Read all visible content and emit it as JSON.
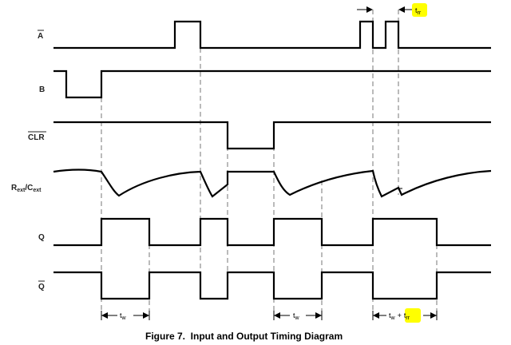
{
  "signals": {
    "a_bar": "A",
    "b": "B",
    "clr_bar": "CLR",
    "rext": {
      "main": "R",
      "sub1": "ext",
      "sep": "/C",
      "sub2": "ext"
    },
    "q": "Q",
    "q_bar": "Q"
  },
  "measures": {
    "tw1": {
      "t": "t",
      "sub": "w"
    },
    "tw2": {
      "t": "t",
      "sub": "w"
    },
    "tw3": {
      "t": "t",
      "sub": "w",
      "plus": "+",
      "t2": "t",
      "sub2": "rr"
    },
    "trr_top": {
      "t": "t",
      "sub": "rr"
    }
  },
  "highlight_color": "#ffff00",
  "caption": "Figure 7.  Input and Output Timing Diagram"
}
